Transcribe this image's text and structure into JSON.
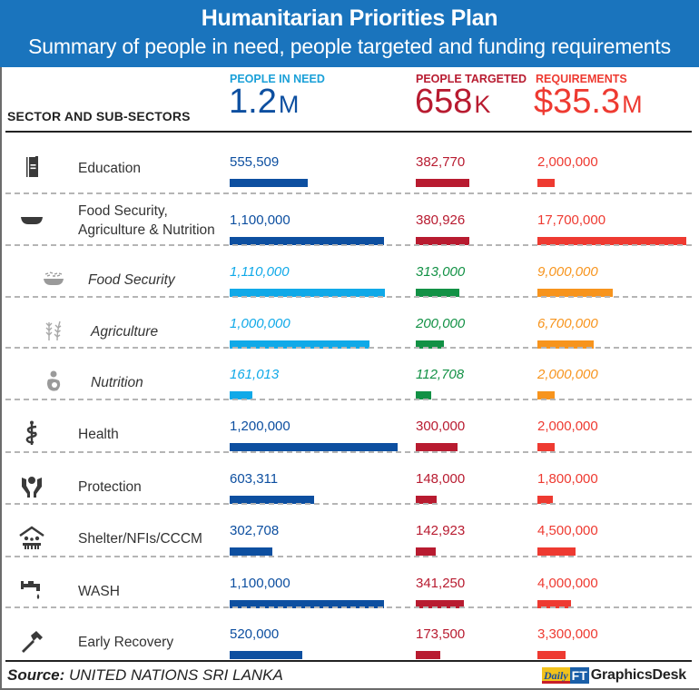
{
  "header": {
    "title": "Humanitarian Priorities Plan",
    "subtitle": "Summary of people in need, people targeted and funding requirements"
  },
  "columns": {
    "sector": "SECTOR AND SUB-SECTORS",
    "need": {
      "label": "PEOPLE IN NEED",
      "value": "1.2",
      "unit": "M"
    },
    "targeted": {
      "label": "PEOPLE TARGETED",
      "value": "658",
      "unit": "K"
    },
    "requirements": {
      "label": "REQUIREMENTS",
      "value": "$35.3",
      "unit": "M"
    }
  },
  "colors": {
    "banner": "#1a74bd",
    "need_label": "#1aa0d8",
    "need": "#0d4fa0",
    "targeted": "#b81b30",
    "requirements": "#ee3a31",
    "sub_need": "#10a9e8",
    "sub_targeted": "#129145",
    "sub_requirements": "#f7941d"
  },
  "chart_data": {
    "type": "bar",
    "title": "Humanitarian Priorities Plan",
    "subtitle": "Summary of people in need, people targeted and funding requirements",
    "categories": [
      "Education",
      "Food Security, Agriculture & Nutrition",
      "Food Security",
      "Agriculture",
      "Nutrition",
      "Health",
      "Protection",
      "Shelter/NFIs/CCCM",
      "WASH",
      "Early Recovery"
    ],
    "series": [
      {
        "name": "People in need",
        "values": [
          555509,
          1100000,
          1110000,
          1000000,
          161013,
          1200000,
          603311,
          302708,
          1100000,
          520000
        ]
      },
      {
        "name": "People targeted",
        "values": [
          382770,
          380926,
          313000,
          200000,
          112708,
          300000,
          148000,
          142923,
          341250,
          173500
        ]
      },
      {
        "name": "Requirements (USD)",
        "values": [
          2000000,
          17700000,
          9000000,
          6700000,
          2000000,
          2000000,
          1800000,
          4500000,
          4000000,
          3300000
        ]
      }
    ],
    "totals": {
      "people_in_need": "1.2M",
      "people_targeted": "658K",
      "requirements": "$35.3M"
    }
  },
  "rows": [
    {
      "name": "Education",
      "icon": "book-icon",
      "sub": false,
      "need": "555,509",
      "targeted": "382,770",
      "req": "2,000,000"
    },
    {
      "name": "Food Security,\nAgriculture & Nutrition",
      "icon": "bowl-icon",
      "sub": false,
      "need": "1,100,000",
      "targeted": "380,926",
      "req": "17,700,000"
    },
    {
      "name": "Food Security",
      "icon": "rice-bowl-icon",
      "sub": true,
      "need": "1,110,000",
      "targeted": "313,000",
      "req": "9,000,000"
    },
    {
      "name": "Agriculture",
      "icon": "wheat-icon",
      "sub": true,
      "need": "1,000,000",
      "targeted": "200,000",
      "req": "6,700,000"
    },
    {
      "name": "Nutrition",
      "icon": "breastfeeding-icon",
      "sub": true,
      "need": "161,013",
      "targeted": "112,708",
      "req": "2,000,000"
    },
    {
      "name": "Health",
      "icon": "caduceus-icon",
      "sub": false,
      "need": "1,200,000",
      "targeted": "300,000",
      "req": "2,000,000"
    },
    {
      "name": "Protection",
      "icon": "protection-hands-icon",
      "sub": false,
      "need": "603,311",
      "targeted": "148,000",
      "req": "1,800,000"
    },
    {
      "name": "Shelter/NFIs/CCCM",
      "icon": "shelter-icon",
      "sub": false,
      "need": "302,708",
      "targeted": "142,923",
      "req": "4,500,000"
    },
    {
      "name": "WASH",
      "icon": "tap-icon",
      "sub": false,
      "need": "1,100,000",
      "targeted": "341,250",
      "req": "4,000,000"
    },
    {
      "name": "Early Recovery",
      "icon": "hammer-icon",
      "sub": false,
      "need": "520,000",
      "targeted": "173,500",
      "req": "3,300,000"
    }
  ],
  "footer": {
    "source_label": "Source:",
    "source_text": "UNITED NATIONS SRI LANKA",
    "brand_daily": "Daily",
    "brand_ft": "FT",
    "brand_desk": "GraphicsDesk"
  }
}
